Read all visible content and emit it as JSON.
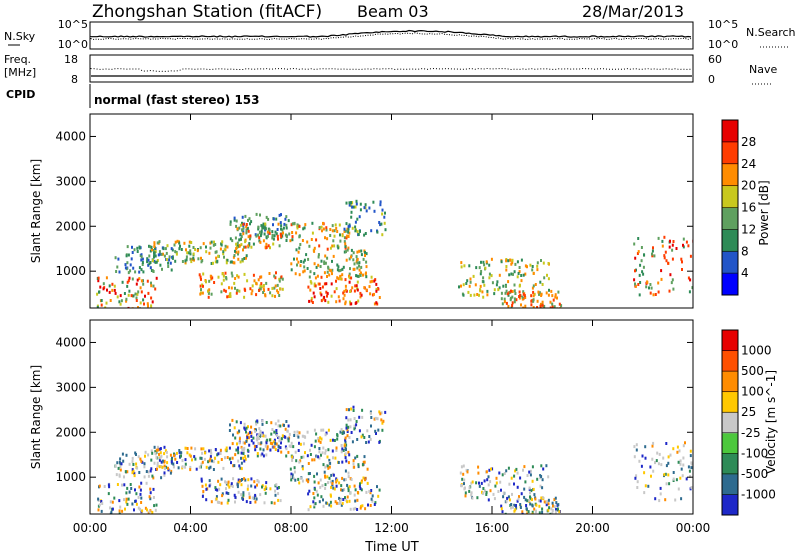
{
  "header": {
    "station": "Zhongshan Station (fitACF)",
    "beam": "Beam 03",
    "date": "28/Mar/2013"
  },
  "status_panels": {
    "nsky": {
      "label": "N.Sky",
      "ticks": [
        "10^5",
        "10^0"
      ]
    },
    "nsearch": {
      "label": "N.Search",
      "ticks": [
        "10^5",
        "10^0"
      ]
    },
    "freq": {
      "label_line1": "Freq.",
      "label_line2": "[MHz]",
      "ticks": [
        "18",
        "8"
      ]
    },
    "nave": {
      "label": "Nave",
      "ticks": [
        "60",
        "0"
      ]
    },
    "cpid": {
      "label": "CPID",
      "value": "normal (fast stereo) 153"
    }
  },
  "chart_data": [
    {
      "type": "heatmap",
      "quantity": "Power",
      "ylabel": "Slant Range [km]",
      "ylim": [
        180,
        4500
      ],
      "yticks": [
        "1000",
        "2000",
        "3000",
        "4000"
      ],
      "colorbar_label": "Power [dB]",
      "colorbar_ticks": [
        "4",
        "8",
        "12",
        "16",
        "20",
        "24",
        "28"
      ],
      "colorbar_colors": [
        "#0000ff",
        "#2255c8",
        "#2e8b57",
        "#5fa05f",
        "#c8c81e",
        "#ff8c00",
        "#ff3c00",
        "#e60000"
      ]
    },
    {
      "type": "heatmap",
      "quantity": "Velocity",
      "ylabel": "Slant Range [km]",
      "ylim": [
        180,
        4500
      ],
      "yticks": [
        "1000",
        "2000",
        "3000",
        "4000"
      ],
      "colorbar_label": "Velocity [m s^-1]",
      "colorbar_ticks": [
        "1000",
        "500",
        "100",
        "25",
        "-25",
        "-100",
        "-500",
        "-1000"
      ],
      "colorbar_colors": [
        "#1e28c8",
        "#2e6b8f",
        "#2e8b57",
        "#4cc83c",
        "#c8c8c8",
        "#ffc800",
        "#ff8c00",
        "#ff5000",
        "#e60000"
      ]
    }
  ],
  "x_axis": {
    "ticks": [
      "00:00",
      "04:00",
      "08:00",
      "12:00",
      "16:00",
      "20:00",
      "00:00"
    ],
    "label": "Time UT"
  }
}
